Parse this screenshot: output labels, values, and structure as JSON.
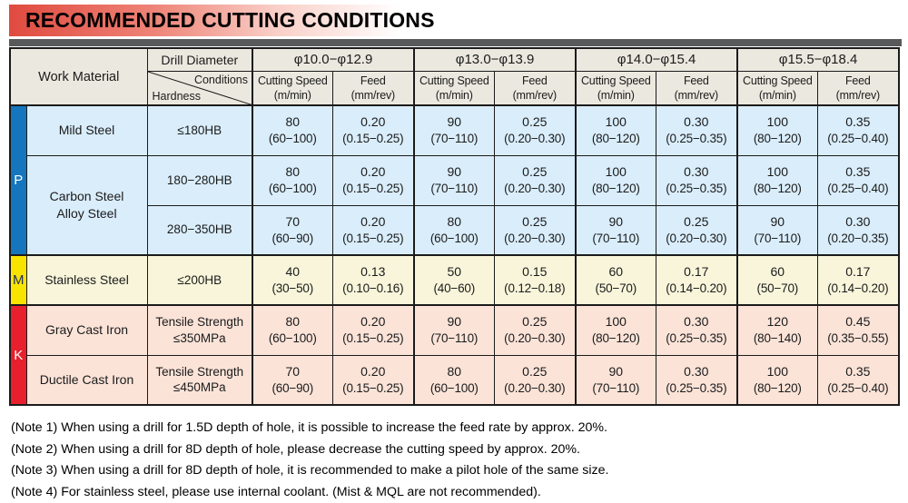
{
  "title": "RECOMMENDED CUTTING CONDITIONS",
  "colors": {
    "title_red": "#e04a3f",
    "divider_gray": "#58595a",
    "header_bg": "#ebe8df",
    "border": "#1b1b1b"
  },
  "table": {
    "work_material_label": "Work Material",
    "drill_diameter_label": "Drill Diameter",
    "conditions_label": "Conditions",
    "hardness_label": "Hardness",
    "cutting_speed_label": "Cutting Speed",
    "cutting_speed_unit": "(m/min)",
    "feed_label": "Feed",
    "feed_unit": "(mm/rev)",
    "diameter_groups": [
      {
        "range": "φ10.0−φ12.9"
      },
      {
        "range": "φ13.0−φ13.9"
      },
      {
        "range": "φ14.0−φ15.4"
      },
      {
        "range": "φ15.5−φ18.4"
      }
    ],
    "iso_groups": [
      {
        "code": "P",
        "color": "#1576bd",
        "text_color": "#ffffff",
        "row_bg": "#d9edfb"
      },
      {
        "code": "M",
        "color": "#f9e400",
        "text_color": "#232f63",
        "row_bg": "#f8f5da"
      },
      {
        "code": "K",
        "color": "#e81f2c",
        "text_color": "#ffffff",
        "row_bg": "#fbe3d8"
      }
    ],
    "rows": [
      {
        "group": "P",
        "section_start": true,
        "group_cell": {
          "code": "P",
          "rowspan": 3
        },
        "material": "Mild Steel",
        "material_rowspan": 1,
        "hardness": "≤180HB",
        "cells": [
          {
            "cutting_speed": "80",
            "cutting_speed_range": "(60−100)",
            "feed": "0.20",
            "feed_range": "(0.15−0.25)"
          },
          {
            "cutting_speed": "90",
            "cutting_speed_range": "(70−110)",
            "feed": "0.25",
            "feed_range": "(0.20−0.30)"
          },
          {
            "cutting_speed": "100",
            "cutting_speed_range": "(80−120)",
            "feed": "0.30",
            "feed_range": "(0.25−0.35)"
          },
          {
            "cutting_speed": "100",
            "cutting_speed_range": "(80−120)",
            "feed": "0.35",
            "feed_range": "(0.25−0.40)"
          }
        ]
      },
      {
        "group": "P",
        "material": "Carbon Steel\nAlloy Steel",
        "material_rowspan": 2,
        "hardness": "180−280HB",
        "cells": [
          {
            "cutting_speed": "80",
            "cutting_speed_range": "(60−100)",
            "feed": "0.20",
            "feed_range": "(0.15−0.25)"
          },
          {
            "cutting_speed": "90",
            "cutting_speed_range": "(70−110)",
            "feed": "0.25",
            "feed_range": "(0.20−0.30)"
          },
          {
            "cutting_speed": "100",
            "cutting_speed_range": "(80−120)",
            "feed": "0.30",
            "feed_range": "(0.25−0.35)"
          },
          {
            "cutting_speed": "100",
            "cutting_speed_range": "(80−120)",
            "feed": "0.35",
            "feed_range": "(0.25−0.40)"
          }
        ]
      },
      {
        "group": "P",
        "hardness": "280−350HB",
        "cells": [
          {
            "cutting_speed": "70",
            "cutting_speed_range": "(60−90)",
            "feed": "0.20",
            "feed_range": "(0.15−0.25)"
          },
          {
            "cutting_speed": "80",
            "cutting_speed_range": "(60−100)",
            "feed": "0.25",
            "feed_range": "(0.20−0.30)"
          },
          {
            "cutting_speed": "90",
            "cutting_speed_range": "(70−110)",
            "feed": "0.25",
            "feed_range": "(0.20−0.30)"
          },
          {
            "cutting_speed": "90",
            "cutting_speed_range": "(70−110)",
            "feed": "0.30",
            "feed_range": "(0.20−0.35)"
          }
        ]
      },
      {
        "group": "M",
        "section_start": true,
        "group_cell": {
          "code": "M",
          "rowspan": 1
        },
        "material": "Stainless Steel",
        "material_rowspan": 1,
        "hardness": "≤200HB",
        "cells": [
          {
            "cutting_speed": "40",
            "cutting_speed_range": "(30−50)",
            "feed": "0.13",
            "feed_range": "(0.10−0.16)"
          },
          {
            "cutting_speed": "50",
            "cutting_speed_range": "(40−60)",
            "feed": "0.15",
            "feed_range": "(0.12−0.18)"
          },
          {
            "cutting_speed": "60",
            "cutting_speed_range": "(50−70)",
            "feed": "0.17",
            "feed_range": "(0.14−0.20)"
          },
          {
            "cutting_speed": "60",
            "cutting_speed_range": "(50−70)",
            "feed": "0.17",
            "feed_range": "(0.14−0.20)"
          }
        ]
      },
      {
        "group": "K",
        "section_start": true,
        "group_cell": {
          "code": "K",
          "rowspan": 2
        },
        "material": "Gray Cast Iron",
        "material_rowspan": 1,
        "hardness": "Tensile Strength\n≤350MPa",
        "cells": [
          {
            "cutting_speed": "80",
            "cutting_speed_range": "(60−100)",
            "feed": "0.20",
            "feed_range": "(0.15−0.25)"
          },
          {
            "cutting_speed": "90",
            "cutting_speed_range": "(70−110)",
            "feed": "0.25",
            "feed_range": "(0.20−0.30)"
          },
          {
            "cutting_speed": "100",
            "cutting_speed_range": "(80−120)",
            "feed": "0.30",
            "feed_range": "(0.25−0.35)"
          },
          {
            "cutting_speed": "120",
            "cutting_speed_range": "(80−140)",
            "feed": "0.45",
            "feed_range": "(0.35−0.55)"
          }
        ]
      },
      {
        "group": "K",
        "material": "Ductile Cast Iron",
        "material_rowspan": 1,
        "hardness": "Tensile Strength\n≤450MPa",
        "cells": [
          {
            "cutting_speed": "70",
            "cutting_speed_range": "(60−90)",
            "feed": "0.20",
            "feed_range": "(0.15−0.25)"
          },
          {
            "cutting_speed": "80",
            "cutting_speed_range": "(60−100)",
            "feed": "0.25",
            "feed_range": "(0.20−0.30)"
          },
          {
            "cutting_speed": "90",
            "cutting_speed_range": "(70−110)",
            "feed": "0.30",
            "feed_range": "(0.25−0.35)"
          },
          {
            "cutting_speed": "100",
            "cutting_speed_range": "(80−120)",
            "feed": "0.35",
            "feed_range": "(0.25−0.40)"
          }
        ]
      }
    ]
  },
  "notes": [
    "(Note 1) When using a drill for 1.5D depth of hole, it is possible to increase the feed rate by approx. 20%.",
    "(Note 2) When using a drill for 8D depth of hole, please decrease the cutting speed by approx. 20%.",
    "(Note 3) When using a drill for 8D depth of hole, it is recommended to make a pilot hole of the same size.",
    "(Note 4) For stainless steel, please use internal coolant. (Mist & MQL are not recommended)."
  ]
}
